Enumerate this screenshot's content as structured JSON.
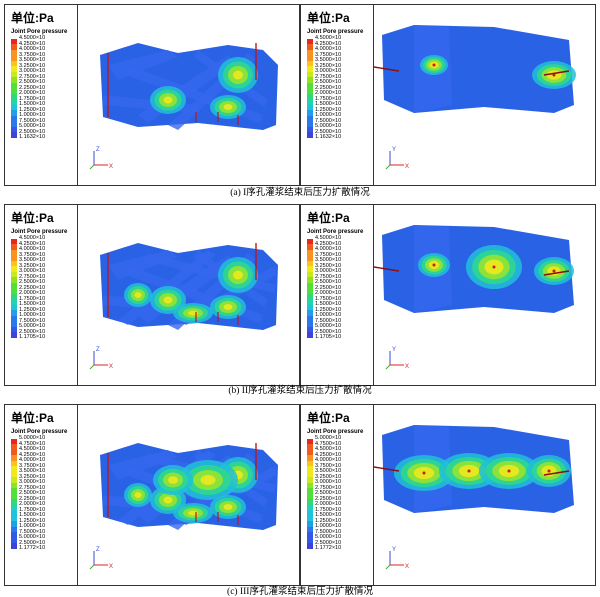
{
  "unit_label": "单位:Pa",
  "legend_title": "Joint Pore pressure",
  "axes": {
    "z": "Z",
    "y": "Y",
    "x": "X"
  },
  "axis_colors": {
    "z": "#3a4ad8",
    "y": "#2fb52f",
    "x": "#e02020"
  },
  "colors": [
    "#e8251f",
    "#f05a1e",
    "#f7931e",
    "#fbc220",
    "#f2e91c",
    "#c8ea1c",
    "#8fe322",
    "#52df3a",
    "#2fd97a",
    "#22d3b3",
    "#20c3dc",
    "#209fe8",
    "#2a78ea",
    "#3258e8",
    "#3d43d8"
  ],
  "rows": [
    {
      "caption": "(a) I序孔灌浆结束后压力扩散情况",
      "legend_values": [
        "4.5000×10",
        "4.2500×10",
        "4.0000×10",
        "3.7500×10",
        "3.5000×10",
        "3.2500×10",
        "3.0000×10",
        "2.7500×10",
        "2.5000×10",
        "2.2500×10",
        "2.0000×10",
        "1.7500×10",
        "1.5000×10",
        "1.2500×10",
        "1.0000×10",
        "7.5000×10",
        "5.0000×10",
        "2.5000×10",
        "1.1632×10"
      ]
    },
    {
      "caption": "(b) II序孔灌浆结束后压力扩散情况",
      "legend_values": [
        "4.5000×10",
        "4.2500×10",
        "4.0000×10",
        "3.7500×10",
        "3.5000×10",
        "3.2500×10",
        "3.0000×10",
        "2.7500×10",
        "2.5000×10",
        "2.2500×10",
        "2.0000×10",
        "1.7500×10",
        "1.5000×10",
        "1.2500×10",
        "1.0000×10",
        "7.5000×10",
        "5.0000×10",
        "2.5000×10",
        "1.1705×10"
      ]
    },
    {
      "caption": "(c) III序孔灌浆结束后压力扩散情况",
      "legend_values": [
        "5.0000×10",
        "4.7500×10",
        "4.5000×10",
        "4.2500×10",
        "4.0000×10",
        "3.7500×10",
        "3.5000×10",
        "3.2500×10",
        "3.0000×10",
        "2.7500×10",
        "2.5000×10",
        "2.2500×10",
        "2.0000×10",
        "1.7500×10",
        "1.5000×10",
        "1.2500×10",
        "1.0000×10",
        "7.5000×10",
        "5.0000×10",
        "2.5000×10",
        "1.1772×10"
      ]
    }
  ]
}
